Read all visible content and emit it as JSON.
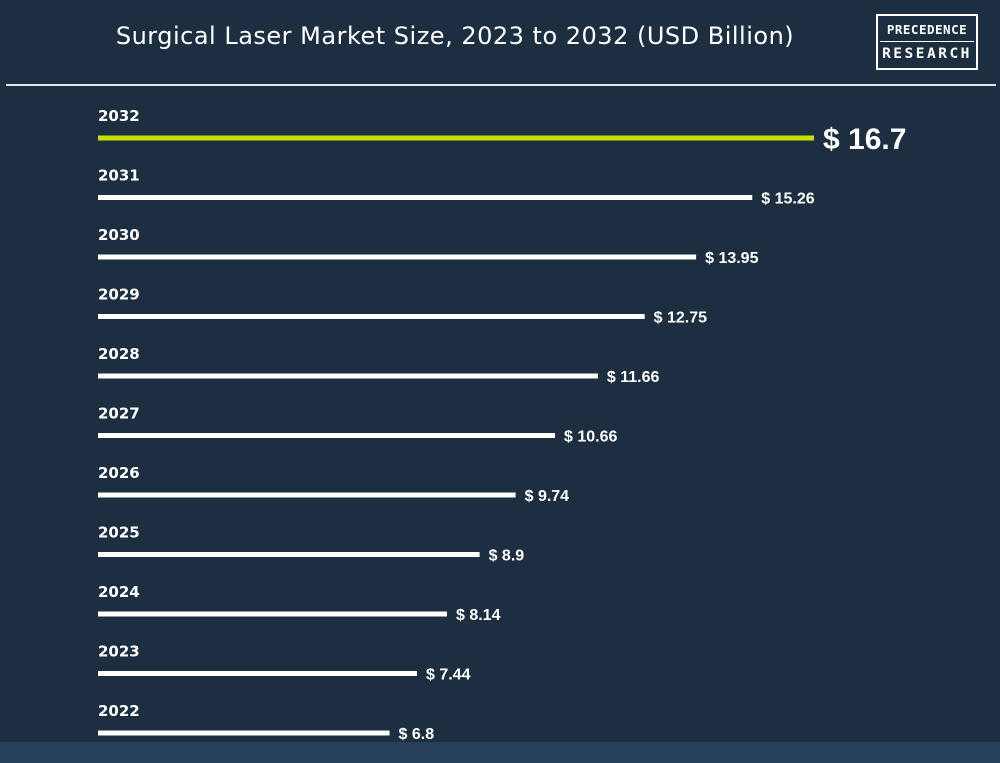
{
  "header": {
    "title": "Surgical Laser Market Size, 2023 to 2032 (USD Billion)",
    "logo_line1": "PRECEDENCE",
    "logo_line2": "RESEARCH"
  },
  "colors": {
    "background": "#1c2e40",
    "bar": "#ffffff",
    "highlight_bar": "#c8e000",
    "text": "#ffffff"
  },
  "chart_data": {
    "type": "bar",
    "orientation": "horizontal",
    "title": "Surgical Laser Market Size, 2023 to 2032 (USD Billion)",
    "categories": [
      "2032",
      "2031",
      "2030",
      "2029",
      "2028",
      "2027",
      "2026",
      "2025",
      "2024",
      "2023",
      "2022"
    ],
    "values": [
      16.7,
      15.26,
      13.95,
      12.75,
      11.66,
      10.66,
      9.74,
      8.9,
      8.14,
      7.44,
      6.8
    ],
    "value_labels": [
      "$ 16.7",
      "$ 15.26",
      "$ 13.95",
      "$ 12.75",
      "$ 11.66",
      "$ 10.66",
      "$ 9.74",
      "$ 8.9",
      "$ 8.14",
      "$ 7.44",
      "$ 6.8"
    ],
    "highlight_category": "2032",
    "xlim": [
      0,
      16.7
    ],
    "grid": false,
    "legend": "none",
    "xlabel": "",
    "ylabel": ""
  }
}
